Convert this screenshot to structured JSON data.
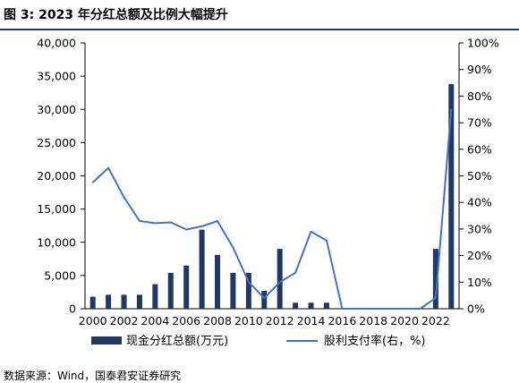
{
  "figure": {
    "title": "图 3:  2023 年分红总额及比例大幅提升",
    "source": "数据来源：Wind，国泰君安证券研究"
  },
  "chart_data": {
    "type": "bar",
    "categories": [
      "2000",
      "2001",
      "2002",
      "2003",
      "2004",
      "2005",
      "2006",
      "2007",
      "2008",
      "2009",
      "2010",
      "2011",
      "2012",
      "2013",
      "2014",
      "2015",
      "2016",
      "2017",
      "2018",
      "2019",
      "2020",
      "2021",
      "2022",
      "2023"
    ],
    "x_tick_labels": [
      "2000",
      "2002",
      "2004",
      "2006",
      "2008",
      "2010",
      "2012",
      "2014",
      "2016",
      "2018",
      "2020",
      "2022"
    ],
    "series": [
      {
        "name": "现金分红总额(万元)",
        "type": "bar",
        "axis": "left",
        "color": "#1f3864",
        "values": [
          1800,
          2100,
          2100,
          2100,
          3700,
          5400,
          6500,
          11900,
          8100,
          5400,
          5400,
          2700,
          9000,
          900,
          900,
          900,
          0,
          0,
          0,
          0,
          0,
          0,
          9000,
          33800
        ]
      },
      {
        "name": "股利支付率(右，%)",
        "type": "line",
        "axis": "right",
        "color": "#4472c4",
        "values": [
          47.5,
          53,
          42,
          33,
          32.2,
          32.5,
          29.8,
          31,
          33,
          23,
          10,
          4,
          10,
          13.5,
          29,
          25.7,
          0,
          0,
          0,
          0,
          0,
          0,
          4,
          75
        ]
      }
    ],
    "y_left": {
      "ylim": [
        0,
        40000
      ],
      "ticks": [
        "0",
        "5,000",
        "10,000",
        "15,000",
        "20,000",
        "25,000",
        "30,000",
        "35,000",
        "40,000"
      ]
    },
    "y_right": {
      "ylim": [
        0,
        100
      ],
      "ticks": [
        "0%",
        "10%",
        "20%",
        "30%",
        "40%",
        "50%",
        "60%",
        "70%",
        "80%",
        "90%",
        "100%"
      ]
    },
    "legend_position": "bottom",
    "grid": false
  }
}
